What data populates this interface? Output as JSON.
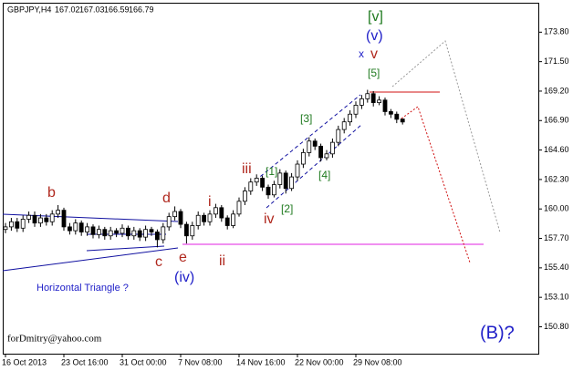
{
  "chart_data": {
    "type": "candlestick",
    "symbol": "GBPJPY,H4",
    "header_values": [
      167.02,
      167.03,
      166.59,
      166.79
    ],
    "categories": [
      "16 Oct 2013",
      null,
      null,
      null,
      null,
      null,
      null,
      null,
      null,
      null,
      "23 Oct 16:00",
      null,
      null,
      null,
      null,
      null,
      null,
      null,
      null,
      null,
      "31 Oct 00:00",
      null,
      null,
      null,
      null,
      null,
      null,
      null,
      null,
      null,
      "7 Nov 08:00",
      null,
      null,
      null,
      null,
      null,
      null,
      null,
      null,
      null,
      "14 Nov 16:00",
      null,
      null,
      null,
      null,
      null,
      null,
      null,
      null,
      null,
      "22 Nov 00:00",
      null,
      null,
      null,
      null,
      null,
      null,
      null,
      null,
      null,
      "29 Nov 08:00",
      null,
      null,
      null,
      null,
      null,
      null,
      null,
      null
    ],
    "open": [
      158.4,
      158.6,
      159.0,
      158.5,
      159.2,
      159.5,
      158.9,
      159.3,
      159.0,
      159.6,
      159.9,
      158.6,
      158.3,
      158.9,
      158.2,
      158.6,
      158.0,
      158.4,
      157.9,
      158.3,
      158.1,
      158.5,
      157.9,
      158.3,
      157.8,
      158.4,
      158.2,
      157.6,
      158.6,
      159.4,
      159.8,
      158.8,
      157.9,
      158.7,
      159.5,
      159.0,
      159.6,
      160.1,
      159.3,
      158.7,
      159.6,
      160.6,
      161.4,
      162.1,
      162.4,
      161.7,
      161.1,
      161.9,
      162.8,
      161.6,
      162.5,
      163.5,
      164.4,
      165.3,
      164.9,
      164.0,
      164.3,
      165.2,
      166.2,
      166.8,
      167.4,
      168.1,
      168.6,
      169.0,
      168.3,
      168.5,
      167.6,
      167.4,
      167.02
    ],
    "high": [
      158.9,
      159.3,
      159.3,
      159.5,
      159.8,
      159.8,
      159.6,
      159.6,
      159.9,
      160.3,
      160.1,
      158.9,
      159.2,
      159.1,
      158.9,
      158.8,
      158.7,
      158.6,
      158.6,
      158.5,
      158.8,
      158.7,
      158.6,
      158.5,
      158.7,
      158.6,
      158.4,
      158.9,
      159.7,
      160.2,
      160.0,
      159.0,
      159.0,
      159.8,
      159.7,
      159.9,
      160.4,
      160.3,
      159.5,
      159.9,
      160.9,
      161.7,
      162.4,
      162.7,
      162.6,
      161.9,
      162.2,
      163.1,
      163.0,
      162.8,
      163.8,
      164.7,
      165.6,
      165.5,
      165.1,
      164.6,
      165.5,
      166.5,
      167.1,
      167.7,
      168.4,
      168.9,
      169.3,
      169.2,
      168.8,
      168.7,
      167.8,
      167.6,
      167.03
    ],
    "low": [
      158.1,
      158.3,
      158.2,
      158.2,
      158.9,
      158.6,
      158.6,
      158.7,
      158.7,
      159.3,
      158.3,
      158.0,
      158.0,
      157.9,
      157.9,
      157.7,
      157.7,
      157.6,
      157.6,
      157.8,
      157.8,
      157.6,
      157.6,
      157.5,
      157.5,
      157.9,
      157.0,
      157.3,
      158.3,
      159.1,
      158.5,
      157.3,
      157.6,
      158.4,
      158.7,
      158.7,
      159.3,
      159.0,
      158.4,
      158.5,
      159.4,
      160.3,
      161.1,
      161.8,
      161.4,
      160.8,
      160.9,
      161.6,
      161.2,
      161.4,
      162.2,
      163.2,
      164.1,
      164.6,
      163.7,
      163.8,
      164.0,
      164.9,
      165.9,
      166.5,
      167.1,
      167.8,
      168.3,
      168.0,
      168.1,
      167.3,
      167.1,
      166.7,
      166.59
    ],
    "close": [
      158.6,
      159.0,
      158.5,
      159.2,
      159.5,
      158.9,
      159.3,
      159.0,
      159.6,
      159.9,
      158.6,
      158.3,
      158.9,
      158.2,
      158.6,
      158.0,
      158.4,
      157.9,
      158.3,
      158.1,
      158.5,
      157.9,
      158.3,
      157.8,
      158.4,
      158.2,
      157.6,
      158.6,
      159.4,
      159.8,
      158.8,
      157.9,
      158.7,
      159.5,
      159.0,
      159.6,
      160.1,
      159.3,
      158.7,
      159.6,
      160.6,
      161.4,
      162.1,
      162.4,
      161.7,
      161.1,
      161.9,
      162.8,
      161.6,
      162.5,
      163.5,
      164.4,
      165.3,
      164.9,
      164.0,
      164.3,
      165.2,
      166.2,
      166.8,
      167.4,
      168.1,
      168.6,
      169.0,
      168.3,
      168.5,
      167.6,
      167.4,
      167.0,
      166.79
    ],
    "color": "#000000",
    "ylim": [
      148.7,
      176.1
    ],
    "yticks": [
      {
        "value": 173.8,
        "label": "173.80"
      },
      {
        "value": 171.5,
        "label": "171.50"
      },
      {
        "value": 169.2,
        "label": "169.20"
      },
      {
        "value": 166.9,
        "label": "166.90"
      },
      {
        "value": 164.6,
        "label": "164.60"
      },
      {
        "value": 162.3,
        "label": "162.30"
      },
      {
        "value": 160.0,
        "label": "160.00"
      },
      {
        "value": 157.7,
        "label": "157.70"
      },
      {
        "value": 155.4,
        "label": "155.40"
      },
      {
        "value": 153.1,
        "label": "153.10"
      },
      {
        "value": 150.8,
        "label": "150.80"
      }
    ],
    "annotations": [
      "b",
      "c",
      "d",
      "e",
      "i",
      "ii",
      "iii",
      "iv",
      "x",
      "v",
      "[1]",
      "[2]",
      "[3]",
      "[4]",
      "[5]",
      "[v]",
      "(v)",
      "(iv)",
      "(B)?",
      "Horizontal Triangle ?",
      "forDmitry@yahoo.com"
    ]
  }
}
